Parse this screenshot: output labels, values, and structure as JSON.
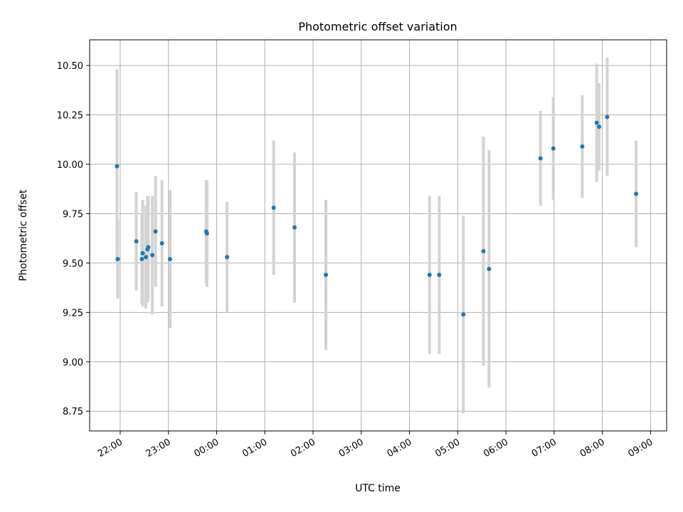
{
  "chart_data": {
    "type": "scatter",
    "title": "Photometric offset variation",
    "xlabel": "UTC time",
    "ylabel": "Photometric offset",
    "x_ticks": [
      "22:00",
      "23:00",
      "00:00",
      "01:00",
      "02:00",
      "03:00",
      "04:00",
      "05:00",
      "06:00",
      "07:00",
      "08:00",
      "09:00"
    ],
    "y_ticks": [
      "8.75",
      "9.00",
      "9.25",
      "9.50",
      "9.75",
      "10.00",
      "10.25",
      "10.50"
    ],
    "xlim": [
      "21:22",
      "09:20"
    ],
    "ylim": [
      8.65,
      10.63
    ],
    "grid": true,
    "series": [
      {
        "points": [
          {
            "x": "21:56",
            "y": 9.99,
            "err": 0.49
          },
          {
            "x": "21:57",
            "y": 9.52,
            "err": 0.2
          },
          {
            "x": "22:20",
            "y": 9.61,
            "err": 0.25
          },
          {
            "x": "22:27",
            "y": 9.52,
            "err": 0.23
          },
          {
            "x": "22:28",
            "y": 9.55,
            "err": 0.27
          },
          {
            "x": "22:32",
            "y": 9.53,
            "err": 0.26
          },
          {
            "x": "22:34",
            "y": 9.57,
            "err": 0.27
          },
          {
            "x": "22:35",
            "y": 9.58,
            "err": 0.26
          },
          {
            "x": "22:40",
            "y": 9.54,
            "err": 0.3
          },
          {
            "x": "22:44",
            "y": 9.66,
            "err": 0.28
          },
          {
            "x": "22:52",
            "y": 9.6,
            "err": 0.32
          },
          {
            "x": "23:02",
            "y": 9.52,
            "err": 0.35
          },
          {
            "x": "23:47",
            "y": 9.66,
            "err": 0.26
          },
          {
            "x": "23:48",
            "y": 9.65,
            "err": 0.27
          },
          {
            "x": "00:13",
            "y": 9.53,
            "err": 0.28
          },
          {
            "x": "01:11",
            "y": 9.78,
            "err": 0.34
          },
          {
            "x": "01:37",
            "y": 9.68,
            "err": 0.38
          },
          {
            "x": "02:16",
            "y": 9.44,
            "err": 0.38
          },
          {
            "x": "04:25",
            "y": 9.44,
            "err": 0.4
          },
          {
            "x": "04:37",
            "y": 9.44,
            "err": 0.4
          },
          {
            "x": "05:07",
            "y": 9.24,
            "err": 0.5
          },
          {
            "x": "05:32",
            "y": 9.56,
            "err": 0.58
          },
          {
            "x": "05:39",
            "y": 9.47,
            "err": 0.6
          },
          {
            "x": "06:43",
            "y": 10.03,
            "err": 0.24
          },
          {
            "x": "06:59",
            "y": 10.08,
            "err": 0.26
          },
          {
            "x": "07:35",
            "y": 10.09,
            "err": 0.26
          },
          {
            "x": "07:53",
            "y": 10.21,
            "err": 0.3
          },
          {
            "x": "07:56",
            "y": 10.19,
            "err": 0.22
          },
          {
            "x": "08:06",
            "y": 10.24,
            "err": 0.3
          },
          {
            "x": "08:42",
            "y": 9.85,
            "err": 0.27
          }
        ]
      }
    ],
    "colors": {
      "point": "#1f77b4",
      "errorbar": "#d3d3d3",
      "grid": "#b0b0b0",
      "axis": "#000000"
    }
  }
}
